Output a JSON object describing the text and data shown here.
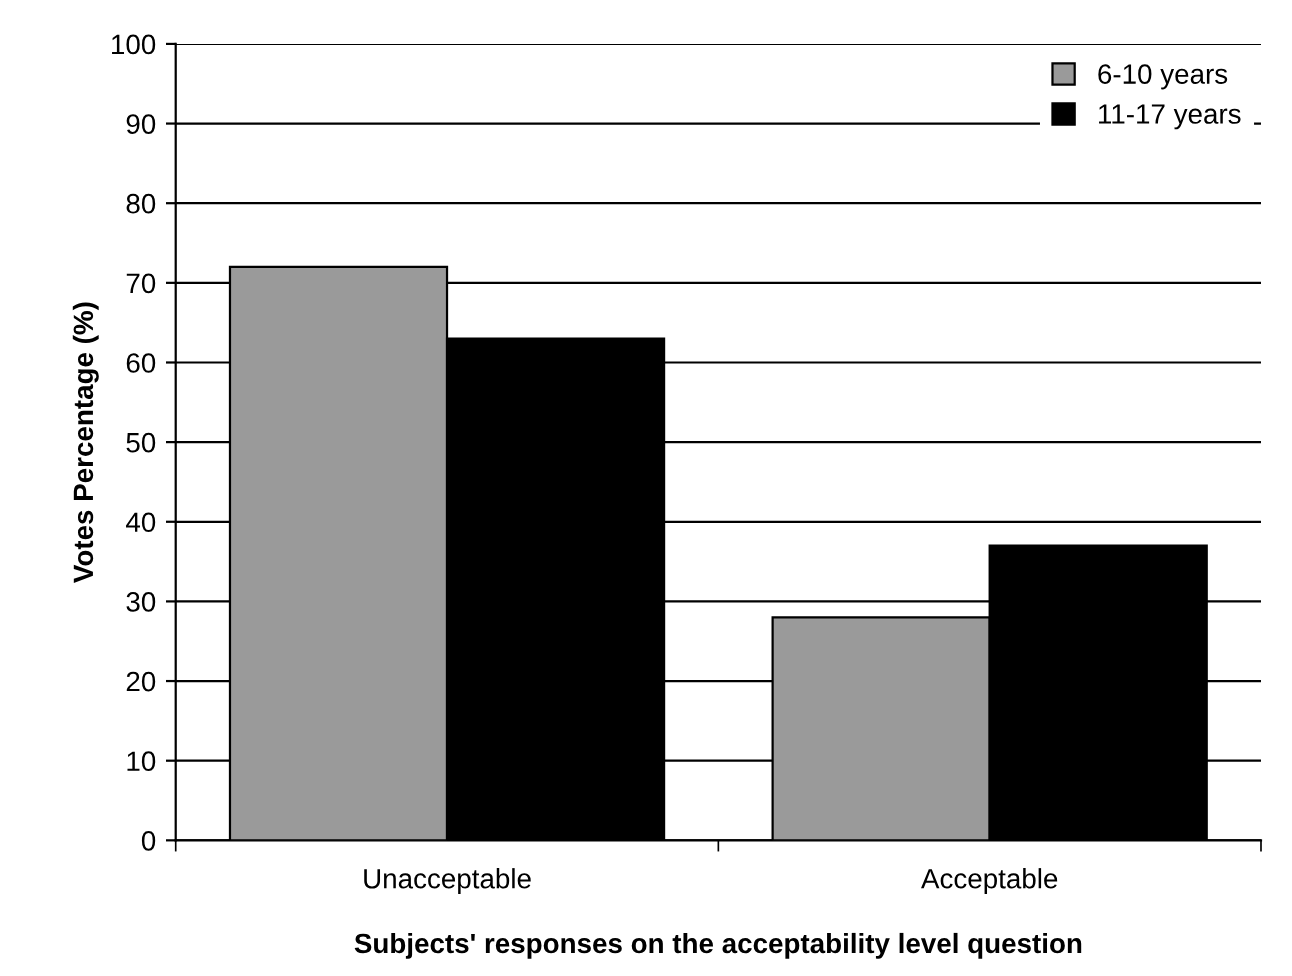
{
  "chart_data": {
    "type": "bar",
    "xlabel": "Subjects' responses on the acceptability level question",
    "ylabel": "Votes Percentage (%)",
    "categories": [
      "Unacceptable",
      "Acceptable"
    ],
    "series": [
      {
        "name": "6-10 years",
        "color": "#9a9a9a",
        "values": [
          72,
          28
        ]
      },
      {
        "name": "11-17 years",
        "color": "#000000",
        "values": [
          63,
          37
        ]
      }
    ],
    "ylim": [
      0,
      100
    ],
    "yticks": [
      0,
      10,
      20,
      30,
      40,
      50,
      60,
      70,
      80,
      90,
      100
    ],
    "grid": "y",
    "legend": "top right"
  }
}
